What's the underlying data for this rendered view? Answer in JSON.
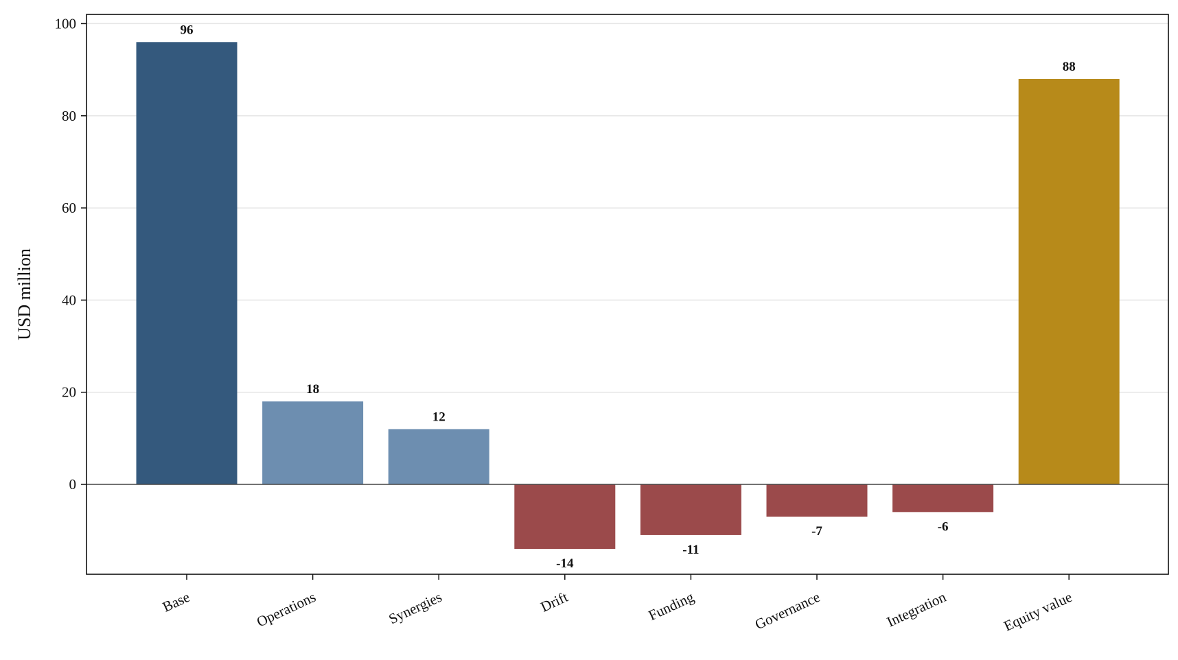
{
  "chart_data": {
    "type": "bar",
    "title": "",
    "xlabel": "",
    "ylabel": "USD million",
    "ylim": [
      -19.5,
      102
    ],
    "yticks": [
      0,
      20,
      40,
      60,
      80,
      100
    ],
    "grid": "horizontal",
    "categories": [
      "Base",
      "Operations",
      "Synergies",
      "Drift",
      "Funding",
      "Governance",
      "Integration",
      "Equity value"
    ],
    "values": [
      96,
      18,
      12,
      -14,
      -11,
      -7,
      -6,
      88
    ],
    "data_labels": [
      "96",
      "18",
      "12",
      "-14",
      "-11",
      "-7",
      "-6",
      "88"
    ],
    "colors": [
      "#34597d",
      "#6d8eb0",
      "#6d8eb0",
      "#9b4a4b",
      "#9b4a4b",
      "#9b4a4b",
      "#9b4a4b",
      "#b78a1a"
    ]
  }
}
